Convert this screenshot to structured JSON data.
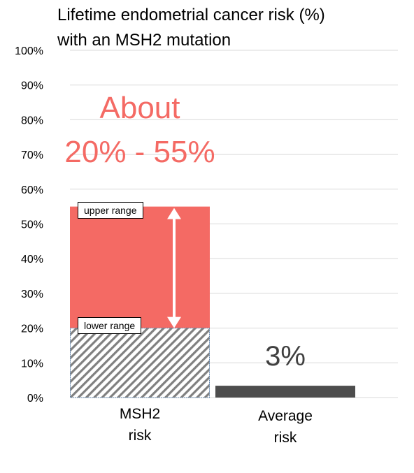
{
  "chart_data": {
    "type": "bar",
    "title": "Lifetime endometrial cancer risk (%) with an MSH2 mutation",
    "title_lines": [
      "Lifetime endometrial cancer risk (%)",
      "with an MSH2 mutation"
    ],
    "categories": [
      {
        "line1": "MSH2",
        "line2": "risk"
      },
      {
        "line1": "Average",
        "line2": "risk"
      }
    ],
    "yticks": [
      "0%",
      "10%",
      "20%",
      "30%",
      "40%",
      "50%",
      "60%",
      "70%",
      "80%",
      "90%",
      "100%"
    ],
    "ylim": [
      0,
      100
    ],
    "grid": true,
    "bars": {
      "msh2_lower": 20,
      "msh2_upper": 55,
      "average": 3
    },
    "annotations": {
      "headline_line1": "About",
      "headline_line2": "20% - 55%",
      "upper_range": "upper range",
      "lower_range": "lower range",
      "average_value": "3%"
    },
    "colors": {
      "range_fill": "#f46a64",
      "hatch": "#808080",
      "average_bar": "#4d4d4d",
      "headline": "#f46a64",
      "grid": "#d9d9d9"
    }
  }
}
